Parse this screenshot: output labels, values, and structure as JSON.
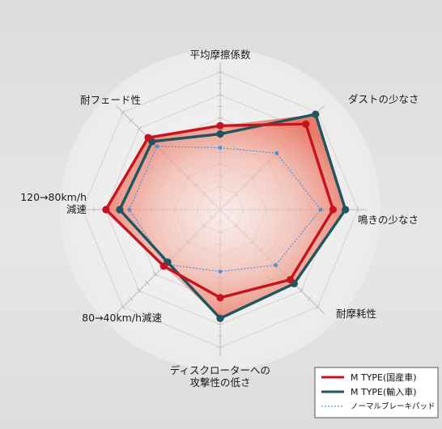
{
  "chart_data": {
    "type": "radar",
    "axes": [
      "平均摩擦係数",
      "ダストの少なさ",
      "鳴きの少なさ",
      "耐摩耗性",
      "ディスクローターへの攻撃性の低さ",
      "80→40km/h減速",
      "120→80km/h減速",
      "耐フェード性"
    ],
    "axis_label_lines": [
      [
        "平均摩擦係数"
      ],
      [
        "ダストの少なさ"
      ],
      [
        "鳴きの少なさ"
      ],
      [
        "耐摩耗性"
      ],
      [
        "ディスクローターへの",
        "攻撃性の低さ"
      ],
      [
        "80→40km/h減速"
      ],
      [
        "120→80km/h",
        "減速"
      ],
      [
        "耐フェード性"
      ]
    ],
    "max": 1.0,
    "rings": 6,
    "series": [
      {
        "name": "M TYPE(国産車)",
        "color": "#c8121e",
        "values": [
          0.61,
          0.88,
          0.82,
          0.72,
          0.64,
          0.58,
          0.83,
          0.74
        ]
      },
      {
        "name": "M TYPE(輸入車)",
        "color": "#1e5560",
        "values": [
          0.55,
          0.98,
          0.91,
          0.76,
          0.79,
          0.54,
          0.73,
          0.7
        ]
      },
      {
        "name": "ノーマルブレーキパッド",
        "color": "#4a90e0",
        "values": [
          0.45,
          0.58,
          0.73,
          0.57,
          0.45,
          0.56,
          0.66,
          0.65
        ]
      }
    ],
    "grid": true
  }
}
